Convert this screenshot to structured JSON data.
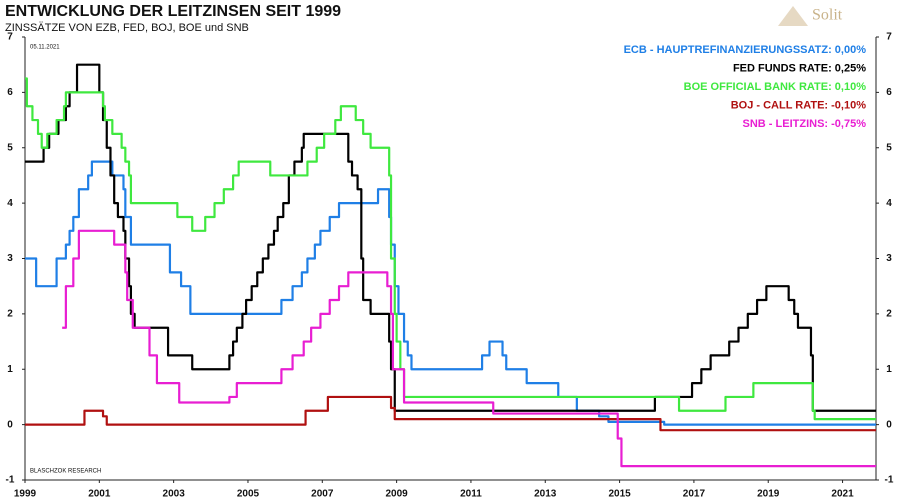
{
  "chart_data": {
    "type": "line",
    "step": true,
    "title": "ENTWICKLUNG DER LEITZINSEN SEIT 1999",
    "subtitle": "ZINSSÄTZE VON EZB, FED, BOJ, BOE und SNB",
    "date_note": "05.11.2021",
    "source": "BLASCHZOK RESEARCH",
    "logo": "Solit",
    "xlim": [
      1999,
      2021.9
    ],
    "xticks": [
      1999,
      2001,
      2003,
      2005,
      2007,
      2009,
      2011,
      2013,
      2015,
      2017,
      2019,
      2021
    ],
    "ylim": [
      -1,
      7
    ],
    "yticks": [
      -1,
      0,
      1,
      2,
      3,
      4,
      5,
      6,
      7
    ],
    "y2lim": [
      -1,
      7
    ],
    "y2ticks": [
      -1,
      0,
      1,
      2,
      3,
      4,
      5,
      6,
      7
    ],
    "grid": false,
    "legend": "upper right",
    "series": [
      {
        "name": "ECB - HAUPTREFINANZIERUNGSSATZ: 0,00%",
        "color": "#1f7fe6",
        "x": [
          1999,
          1999.3,
          1999.85,
          2000.1,
          2000.2,
          2000.3,
          2000.45,
          2000.7,
          2000.8,
          2001.35,
          2001.65,
          2001.7,
          2001.85,
          2002.9,
          2003.2,
          2003.45,
          2005.9,
          2006.2,
          2006.45,
          2006.6,
          2006.8,
          2006.95,
          2007.2,
          2007.45,
          2008.5,
          2008.8,
          2008.85,
          2008.95,
          2009.05,
          2009.2,
          2009.3,
          2009.4,
          2011.3,
          2011.5,
          2011.85,
          2011.95,
          2012.5,
          2013.35,
          2013.85,
          2014.45,
          2014.7,
          2016.2,
          2021.9
        ],
        "values": [
          3,
          2.5,
          3,
          3.25,
          3.5,
          3.75,
          4.25,
          4.5,
          4.75,
          4.5,
          4.25,
          3.75,
          3.25,
          2.75,
          2.5,
          2,
          2.25,
          2.5,
          2.75,
          3,
          3.25,
          3.5,
          3.75,
          4,
          4.25,
          3.75,
          3.25,
          2.5,
          2,
          1.5,
          1.25,
          1,
          1.25,
          1.5,
          1.25,
          1,
          0.75,
          0.5,
          0.25,
          0.15,
          0.05,
          0,
          0
        ]
      },
      {
        "name": "FED FUNDS RATE: 0,25%",
        "color": "#000000",
        "x": [
          1999,
          1999.5,
          1999.65,
          1999.9,
          2000.1,
          2000.2,
          2000.4,
          2001,
          2001.1,
          2001.2,
          2001.3,
          2001.4,
          2001.5,
          2001.65,
          2001.7,
          2001.8,
          2001.85,
          2001.95,
          2002.85,
          2003.5,
          2004.5,
          2004.6,
          2004.7,
          2004.85,
          2004.95,
          2005.1,
          2005.25,
          2005.4,
          2005.55,
          2005.7,
          2005.8,
          2005.95,
          2006.1,
          2006.25,
          2006.45,
          2006.5,
          2007.7,
          2007.8,
          2007.95,
          2008.05,
          2008.1,
          2008.3,
          2008.8,
          2008.85,
          2008.95,
          2015.95,
          2016.95,
          2017.2,
          2017.45,
          2017.95,
          2018.2,
          2018.45,
          2018.7,
          2018.95,
          2019.55,
          2019.7,
          2019.8,
          2020.15,
          2020.2,
          2021.9
        ],
        "values": [
          4.75,
          5,
          5.25,
          5.5,
          5.75,
          6,
          6.5,
          6,
          5.5,
          5,
          4.5,
          4,
          3.75,
          3.5,
          3,
          2.5,
          2,
          1.75,
          1.25,
          1,
          1.25,
          1.5,
          1.75,
          2,
          2.25,
          2.5,
          2.75,
          3,
          3.25,
          3.5,
          3.75,
          4,
          4.5,
          4.75,
          5,
          5.25,
          4.75,
          4.5,
          4.25,
          3,
          2.25,
          2,
          1.5,
          1,
          0.25,
          0.5,
          0.75,
          1,
          1.25,
          1.5,
          1.75,
          2,
          2.25,
          2.5,
          2.25,
          2,
          1.75,
          1.25,
          0.25,
          0.25
        ]
      },
      {
        "name": "BOE  OFFICIAL  BANK  RATE: 0,10%",
        "color": "#3fe83f",
        "x": [
          1999,
          1999.05,
          1999.2,
          1999.35,
          1999.45,
          1999.6,
          1999.85,
          2000.05,
          2000.1,
          2001.1,
          2001.15,
          2001.35,
          2001.6,
          2001.7,
          2001.8,
          2001.85,
          2003.1,
          2003.5,
          2003.85,
          2004.1,
          2004.35,
          2004.6,
          2004.75,
          2005.6,
          2006.6,
          2006.85,
          2007.05,
          2007.35,
          2007.5,
          2007.9,
          2008.1,
          2008.3,
          2008.8,
          2008.85,
          2008.95,
          2009,
          2009.1,
          2009.2,
          2016.6,
          2017.85,
          2018.6,
          2020.2,
          2020.25,
          2021.9
        ],
        "values": [
          6.25,
          5.75,
          5.5,
          5.25,
          5,
          5.25,
          5.5,
          5.75,
          6,
          5.75,
          5.5,
          5.25,
          5,
          4.75,
          4.5,
          4,
          3.75,
          3.5,
          3.75,
          4,
          4.25,
          4.5,
          4.75,
          4.5,
          4.75,
          5,
          5.25,
          5.5,
          5.75,
          5.5,
          5.25,
          5,
          4.5,
          3,
          2,
          1.5,
          1,
          0.5,
          0.25,
          0.5,
          0.75,
          0.25,
          0.1,
          0.1
        ]
      },
      {
        "name": "BOJ - CALL  RATE: -0,10%",
        "color": "#b01010",
        "x": [
          1999,
          2000.6,
          2001.1,
          2001.2,
          2006.55,
          2007.15,
          2008.85,
          2008.95,
          2016.1,
          2021.9
        ],
        "values": [
          0,
          0.25,
          0.15,
          0,
          0.25,
          0.5,
          0.3,
          0.1,
          -0.1,
          -0.1
        ]
      },
      {
        "name": "SNB - LEITZINS: -0,75%",
        "color": "#e81ed2",
        "x": [
          2000,
          2000.1,
          2000.3,
          2000.45,
          2001.4,
          2001.7,
          2001.75,
          2001.9,
          2002.35,
          2002.55,
          2003.15,
          2004.5,
          2004.7,
          2005.9,
          2006.2,
          2006.5,
          2006.7,
          2006.95,
          2007.2,
          2007.45,
          2007.7,
          2008.75,
          2008.85,
          2008.9,
          2009.2,
          2011.6,
          2014.95,
          2015.05,
          2021.9
        ],
        "values": [
          1.75,
          2.5,
          3,
          3.5,
          3.25,
          2.75,
          2.25,
          1.75,
          1.25,
          0.75,
          0.4,
          0.5,
          0.75,
          1,
          1.25,
          1.5,
          1.75,
          2,
          2.25,
          2.5,
          2.75,
          2.5,
          2,
          1,
          0.4,
          0.2,
          -0.25,
          -0.75,
          -0.75
        ]
      }
    ]
  }
}
